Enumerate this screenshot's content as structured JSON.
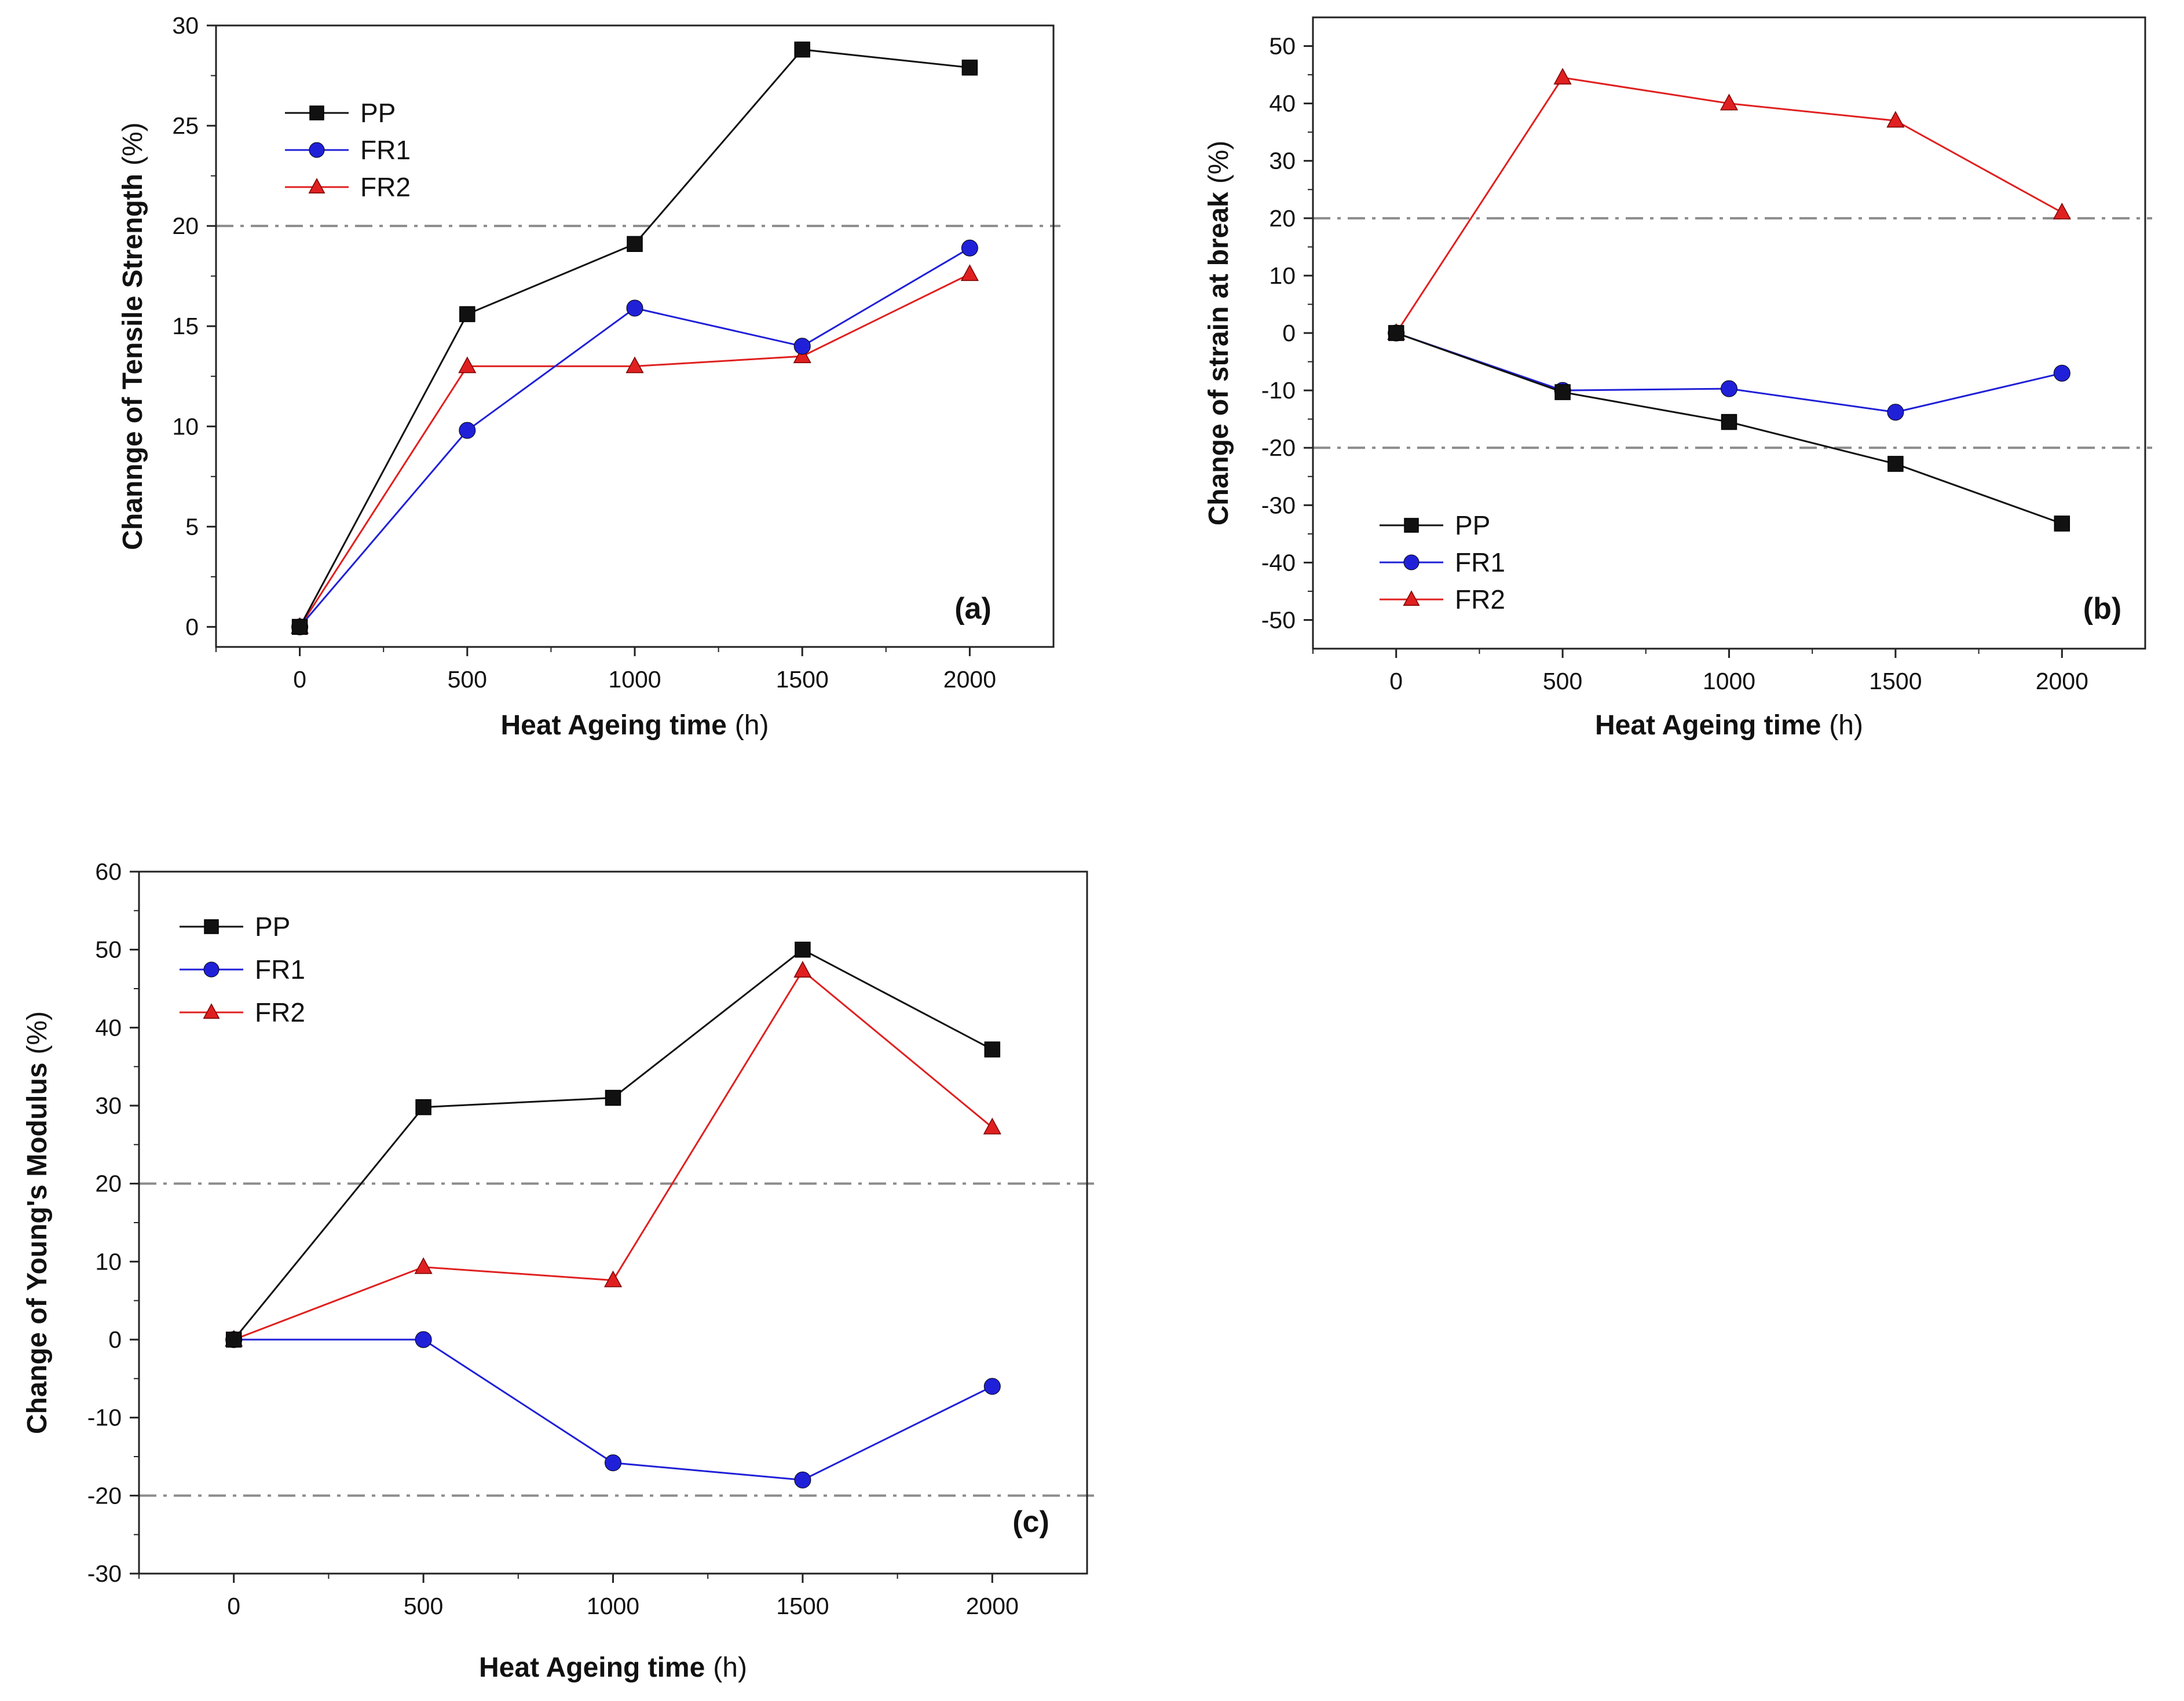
{
  "colors": {
    "PP": "#111111",
    "FR1": "#2020d8",
    "FR2": "#e02020",
    "threshold": "#8c8c8c",
    "axis": "#222222"
  },
  "chart_data": [
    {
      "type": "line",
      "panel_label": "(a)",
      "xlabel": "Heat Ageing time",
      "xlabel_unit": "(h)",
      "ylabel": "Channge of Tensile Strength",
      "ylabel_unit": "(%)",
      "x": [
        0,
        500,
        1000,
        1500,
        2000
      ],
      "xlim": [
        -250,
        2250
      ],
      "ylim": [
        -1,
        30
      ],
      "xticks": [
        0,
        500,
        1000,
        1500,
        2000
      ],
      "yticks": [
        0,
        5,
        10,
        15,
        20,
        25,
        30
      ],
      "series": [
        {
          "name": "PP",
          "marker": "square",
          "values": [
            0,
            15.6,
            19.1,
            28.8,
            27.9
          ]
        },
        {
          "name": "FR1",
          "marker": "circle",
          "values": [
            0,
            9.8,
            15.9,
            14.0,
            18.9
          ]
        },
        {
          "name": "FR2",
          "marker": "triangle",
          "values": [
            0,
            13.0,
            13.0,
            13.5,
            17.6
          ]
        }
      ],
      "reference_lines": [
        20
      ],
      "legend_position": "top-left"
    },
    {
      "type": "line",
      "panel_label": "(b)",
      "xlabel": "Heat Ageing time",
      "xlabel_unit": "(h)",
      "ylabel": "Change of strain at break",
      "ylabel_unit": "(%)",
      "x": [
        0,
        500,
        1000,
        1500,
        2000
      ],
      "xlim": [
        -250,
        2250
      ],
      "ylim": [
        -55,
        55
      ],
      "xticks": [
        0,
        500,
        1000,
        1500,
        2000
      ],
      "yticks": [
        -50,
        -40,
        -30,
        -20,
        -10,
        0,
        10,
        20,
        30,
        40,
        50
      ],
      "series": [
        {
          "name": "PP",
          "marker": "square",
          "values": [
            0,
            -10.3,
            -15.5,
            -22.8,
            -33.2
          ]
        },
        {
          "name": "FR1",
          "marker": "circle",
          "values": [
            0,
            -10.0,
            -9.7,
            -13.8,
            -7.0
          ]
        },
        {
          "name": "FR2",
          "marker": "triangle",
          "values": [
            0,
            44.5,
            40.0,
            37.0,
            21.0
          ]
        }
      ],
      "reference_lines": [
        20,
        -20
      ],
      "legend_position": "bottom-left"
    },
    {
      "type": "line",
      "panel_label": "(c)",
      "xlabel": "Heat Ageing time",
      "xlabel_unit": "(h)",
      "ylabel": "Change of Young's Modulus",
      "ylabel_unit": "(%)",
      "x": [
        0,
        500,
        1000,
        1500,
        2000
      ],
      "xlim": [
        -250,
        2250
      ],
      "ylim": [
        -30,
        60
      ],
      "xticks": [
        0,
        500,
        1000,
        1500,
        2000
      ],
      "yticks": [
        -30,
        -20,
        -10,
        0,
        10,
        20,
        30,
        40,
        50,
        60
      ],
      "series": [
        {
          "name": "PP",
          "marker": "square",
          "values": [
            0,
            29.8,
            31.0,
            50.0,
            37.2
          ]
        },
        {
          "name": "FR1",
          "marker": "circle",
          "values": [
            0,
            0,
            -15.8,
            -18.0,
            -6.0
          ]
        },
        {
          "name": "FR2",
          "marker": "triangle",
          "values": [
            0,
            9.3,
            7.6,
            47.3,
            27.2
          ]
        }
      ],
      "reference_lines": [
        20,
        -20
      ],
      "legend_position": "top-left"
    }
  ]
}
